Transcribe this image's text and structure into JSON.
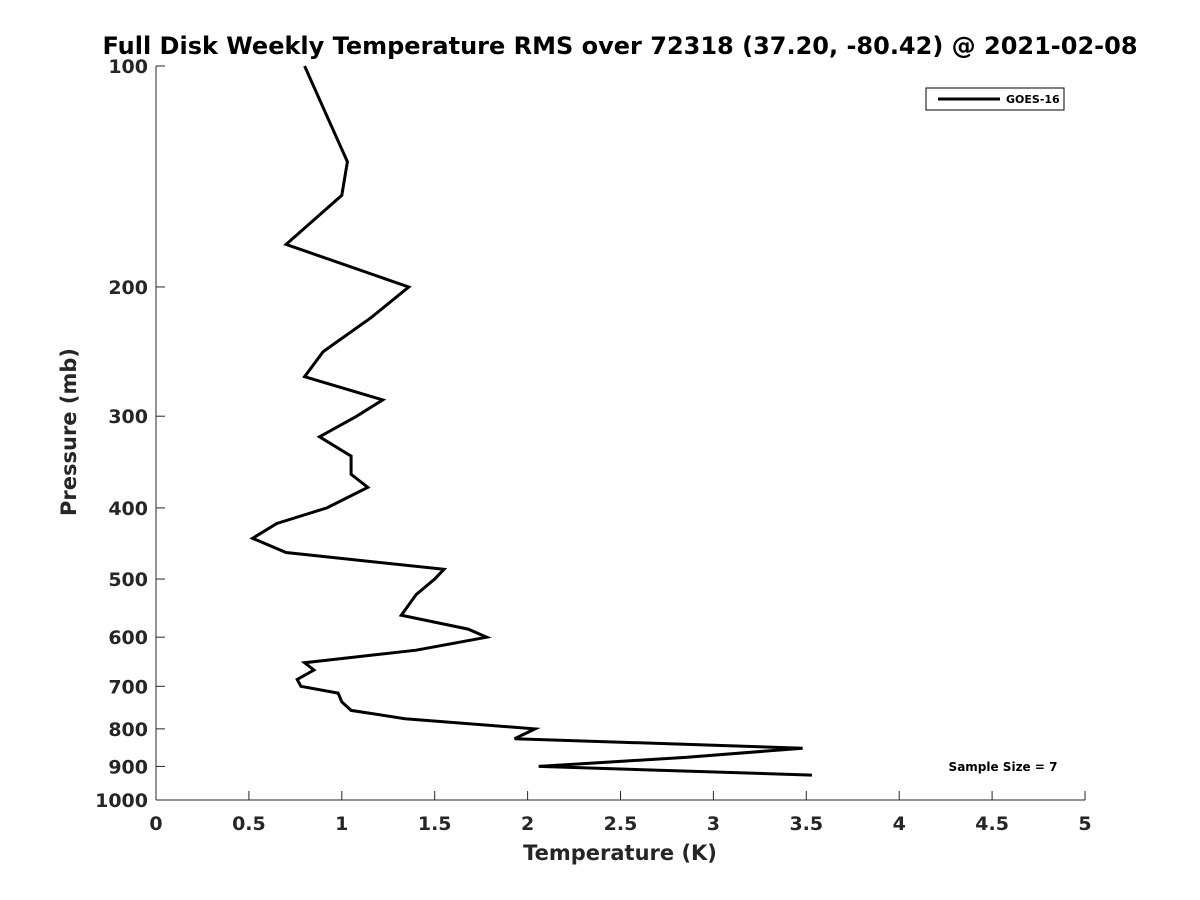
{
  "chart_data": {
    "type": "line",
    "title": "Full Disk Weekly Temperature RMS over 72318 (37.20, -80.42) @ 2021-02-08",
    "xlabel": "Temperature (K)",
    "ylabel": "Pressure (mb)",
    "xlim": [
      0,
      5
    ],
    "ylim": [
      100,
      1000
    ],
    "y_scale": "log",
    "y_reversed": true,
    "x_ticks": [
      "0",
      "0.5",
      "1",
      "1.5",
      "2",
      "2.5",
      "3",
      "3.5",
      "4",
      "4.5",
      "5"
    ],
    "y_ticks": [
      "100",
      "200",
      "300",
      "400",
      "500",
      "600",
      "700",
      "800",
      "900",
      "1000"
    ],
    "grid": false,
    "legend_position": "top-right",
    "series": [
      {
        "name": "GOES-16",
        "color": "#000000",
        "points": [
          [
            0.8,
            100
          ],
          [
            0.92,
            117
          ],
          [
            1.03,
            135
          ],
          [
            1.0,
            150
          ],
          [
            0.7,
            175
          ],
          [
            1.36,
            200
          ],
          [
            1.16,
            220
          ],
          [
            0.9,
            245
          ],
          [
            0.8,
            265
          ],
          [
            1.22,
            285
          ],
          [
            1.08,
            300
          ],
          [
            0.88,
            320
          ],
          [
            1.05,
            340
          ],
          [
            1.05,
            360
          ],
          [
            1.14,
            375
          ],
          [
            0.92,
            400
          ],
          [
            0.65,
            420
          ],
          [
            0.52,
            440
          ],
          [
            0.7,
            460
          ],
          [
            1.55,
            485
          ],
          [
            1.5,
            500
          ],
          [
            1.4,
            525
          ],
          [
            1.32,
            560
          ],
          [
            1.68,
            585
          ],
          [
            1.78,
            600
          ],
          [
            1.4,
            625
          ],
          [
            0.8,
            650
          ],
          [
            0.85,
            665
          ],
          [
            0.76,
            685
          ],
          [
            0.78,
            700
          ],
          [
            0.98,
            715
          ],
          [
            1.0,
            735
          ],
          [
            1.05,
            755
          ],
          [
            1.34,
            775
          ],
          [
            2.04,
            800
          ],
          [
            1.93,
            825
          ],
          [
            3.48,
            850
          ],
          [
            2.85,
            875
          ],
          [
            2.06,
            900
          ],
          [
            3.53,
            925
          ]
        ]
      }
    ],
    "annotations": [
      "Sample Size = 7"
    ]
  }
}
